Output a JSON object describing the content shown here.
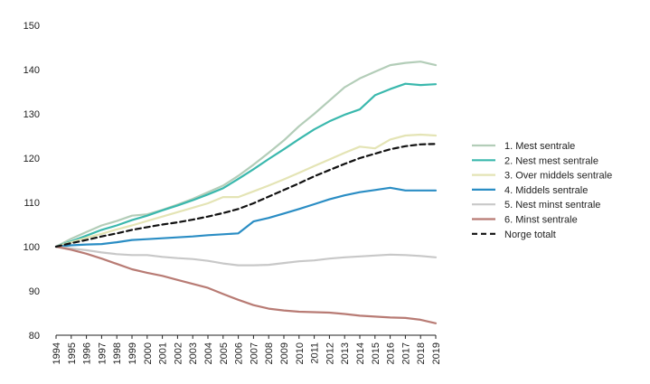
{
  "chart_data": {
    "type": "line",
    "title": "",
    "xlabel": "",
    "ylabel": "",
    "ylim": [
      80,
      150
    ],
    "y_ticks": [
      80,
      90,
      100,
      110,
      120,
      130,
      140,
      150
    ],
    "x": [
      "1994",
      "1995",
      "1996",
      "1997",
      "1998",
      "1999",
      "2000",
      "2001",
      "2002",
      "2003",
      "2004",
      "2005",
      "2006",
      "2007",
      "2008",
      "2009",
      "2010",
      "2011",
      "2012",
      "2013",
      "2014",
      "2015",
      "2016",
      "2017",
      "2018",
      "2019"
    ],
    "grid": false,
    "legend_position": "right",
    "series": [
      {
        "name": "1. Mest sentrale",
        "color": "#b3cdb8",
        "dash": "solid",
        "values": [
          100,
          101.8,
          103.3,
          104.8,
          105.8,
          107,
          107.3,
          108.3,
          109.5,
          110.8,
          112.3,
          113.8,
          116,
          118.5,
          121.2,
          124,
          127.2,
          130,
          133,
          136,
          138,
          139.5,
          141,
          141.5,
          141.8,
          141
        ]
      },
      {
        "name": "2. Nest mest sentrale",
        "color": "#3ab8ad",
        "dash": "solid",
        "values": [
          100,
          101.2,
          102.5,
          103.8,
          104.8,
          106,
          107,
          108.2,
          109.3,
          110.5,
          111.8,
          113.2,
          115.3,
          117.5,
          119.8,
          122,
          124.3,
          126.5,
          128.3,
          129.8,
          131,
          134.2,
          135.6,
          136.8,
          136.5,
          136.7
        ]
      },
      {
        "name": "3. Over middels sentrale",
        "color": "#e4e4b5",
        "dash": "solid",
        "values": [
          100,
          101,
          102,
          102.9,
          103.9,
          104.8,
          105.8,
          106.8,
          107.8,
          108.8,
          109.8,
          111.2,
          111.2,
          112.5,
          113.8,
          115.2,
          116.7,
          118.2,
          119.7,
          121.2,
          122.6,
          122.2,
          124.2,
          125.1,
          125.3,
          125.1
        ]
      },
      {
        "name": "4. Middels sentrale",
        "color": "#2a8dc4",
        "dash": "solid",
        "values": [
          100,
          100.3,
          100.5,
          100.6,
          101,
          101.5,
          101.7,
          101.9,
          102.1,
          102.3,
          102.6,
          102.8,
          103,
          105.7,
          106.5,
          107.5,
          108.5,
          109.6,
          110.7,
          111.6,
          112.3,
          112.8,
          113.3,
          112.7,
          112.7,
          112.7
        ]
      },
      {
        "name": "5. Nest minst sentrale",
        "color": "#c8c8c8",
        "dash": "solid",
        "values": [
          100,
          99.6,
          99.2,
          98.7,
          98.3,
          98.1,
          98.1,
          97.7,
          97.4,
          97.2,
          96.8,
          96.2,
          95.8,
          95.8,
          95.9,
          96.3,
          96.7,
          96.9,
          97.3,
          97.6,
          97.8,
          98,
          98.2,
          98.1,
          97.9,
          97.6
        ]
      },
      {
        "name": "6. Minst sentrale",
        "color": "#b87b74",
        "dash": "solid",
        "values": [
          100,
          99.3,
          98.4,
          97.3,
          96.1,
          94.9,
          94.1,
          93.4,
          92.5,
          91.6,
          90.7,
          89.3,
          88,
          86.8,
          86,
          85.6,
          85.3,
          85.2,
          85.1,
          84.8,
          84.4,
          84.2,
          84,
          83.9,
          83.5,
          82.7
        ]
      },
      {
        "name": "Norge totalt",
        "color": "#111111",
        "dash": "dashed",
        "values": [
          100,
          100.8,
          101.5,
          102.3,
          103,
          103.8,
          104.4,
          105,
          105.5,
          106.1,
          106.8,
          107.6,
          108.5,
          109.8,
          111.3,
          112.8,
          114.3,
          115.9,
          117.3,
          118.7,
          120,
          121,
          122,
          122.7,
          123.1,
          123.2
        ]
      }
    ]
  }
}
